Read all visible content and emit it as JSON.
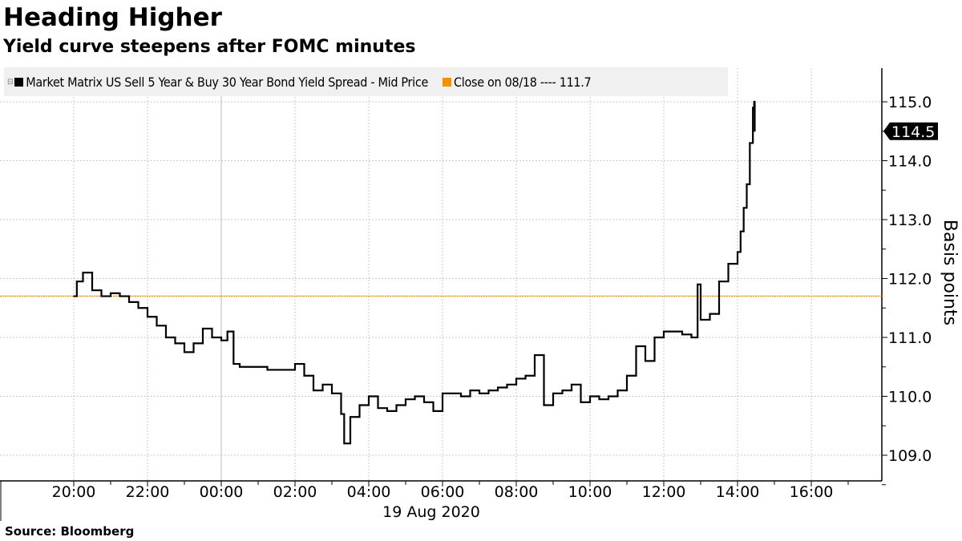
{
  "title": "Heading Higher",
  "subtitle": "Yield curve steepens after FOMC minutes",
  "source": "Source: Bloomberg",
  "colors": {
    "series": "#000000",
    "close_line": "#f39200",
    "legend_bg": "#f0f0f0",
    "grid": "#c8c8c8"
  },
  "chart_data": {
    "type": "line",
    "title": "Heading Higher",
    "subtitle": "Yield curve steepens after FOMC minutes",
    "ylabel": "Basis points",
    "xlabel": "19 Aug 2020",
    "ylim": [
      108.6,
      115.6
    ],
    "xlim": [
      "2020-08-18 19:00",
      "2020-08-19 17:40"
    ],
    "y_ticks": [
      "109.0",
      "110.0",
      "111.0",
      "112.0",
      "113.0",
      "114.0",
      "115.0"
    ],
    "x_ticks": [
      "20:00",
      "22:00",
      "00:00",
      "02:00",
      "04:00",
      "06:00",
      "08:00",
      "10:00",
      "12:00",
      "14:00",
      "16:00"
    ],
    "grid": true,
    "legend_placement": "top-left",
    "last_value_label": "114.5",
    "series": [
      {
        "name": "Market Matrix US Sell 5 Year & Buy 30 Year Bond Yield Spread - Mid Price",
        "color": "#000000",
        "points": [
          [
            "2020-08-18 20:00",
            111.7
          ],
          [
            "2020-08-18 20:05",
            111.95
          ],
          [
            "2020-08-18 20:15",
            112.1
          ],
          [
            "2020-08-18 20:30",
            111.8
          ],
          [
            "2020-08-18 20:45",
            111.7
          ],
          [
            "2020-08-18 21:00",
            111.75
          ],
          [
            "2020-08-18 21:15",
            111.7
          ],
          [
            "2020-08-18 21:30",
            111.6
          ],
          [
            "2020-08-18 21:45",
            111.5
          ],
          [
            "2020-08-18 22:00",
            111.35
          ],
          [
            "2020-08-18 22:15",
            111.2
          ],
          [
            "2020-08-18 22:30",
            111.0
          ],
          [
            "2020-08-18 22:45",
            110.9
          ],
          [
            "2020-08-18 23:00",
            110.75
          ],
          [
            "2020-08-18 23:15",
            110.9
          ],
          [
            "2020-08-18 23:30",
            111.15
          ],
          [
            "2020-08-18 23:45",
            111.0
          ],
          [
            "2020-08-19 00:00",
            110.95
          ],
          [
            "2020-08-19 00:10",
            111.1
          ],
          [
            "2020-08-19 00:20",
            110.55
          ],
          [
            "2020-08-19 00:30",
            110.5
          ],
          [
            "2020-08-19 00:45",
            110.5
          ],
          [
            "2020-08-19 01:00",
            110.5
          ],
          [
            "2020-08-19 01:15",
            110.45
          ],
          [
            "2020-08-19 01:30",
            110.45
          ],
          [
            "2020-08-19 01:45",
            110.45
          ],
          [
            "2020-08-19 02:00",
            110.55
          ],
          [
            "2020-08-19 02:15",
            110.35
          ],
          [
            "2020-08-19 02:30",
            110.1
          ],
          [
            "2020-08-19 02:45",
            110.2
          ],
          [
            "2020-08-19 03:00",
            110.05
          ],
          [
            "2020-08-19 03:15",
            109.7
          ],
          [
            "2020-08-19 03:20",
            109.2
          ],
          [
            "2020-08-19 03:30",
            109.65
          ],
          [
            "2020-08-19 03:45",
            109.85
          ],
          [
            "2020-08-19 04:00",
            110.0
          ],
          [
            "2020-08-19 04:15",
            109.8
          ],
          [
            "2020-08-19 04:30",
            109.75
          ],
          [
            "2020-08-19 04:45",
            109.85
          ],
          [
            "2020-08-19 05:00",
            109.95
          ],
          [
            "2020-08-19 05:15",
            110.0
          ],
          [
            "2020-08-19 05:30",
            109.9
          ],
          [
            "2020-08-19 05:45",
            109.75
          ],
          [
            "2020-08-19 06:00",
            110.05
          ],
          [
            "2020-08-19 06:15",
            110.05
          ],
          [
            "2020-08-19 06:30",
            110.0
          ],
          [
            "2020-08-19 06:45",
            110.1
          ],
          [
            "2020-08-19 07:00",
            110.05
          ],
          [
            "2020-08-19 07:15",
            110.1
          ],
          [
            "2020-08-19 07:30",
            110.15
          ],
          [
            "2020-08-19 07:45",
            110.2
          ],
          [
            "2020-08-19 08:00",
            110.3
          ],
          [
            "2020-08-19 08:15",
            110.35
          ],
          [
            "2020-08-19 08:30",
            110.7
          ],
          [
            "2020-08-19 08:45",
            109.85
          ],
          [
            "2020-08-19 09:00",
            110.05
          ],
          [
            "2020-08-19 09:15",
            110.1
          ],
          [
            "2020-08-19 09:30",
            110.2
          ],
          [
            "2020-08-19 09:45",
            109.9
          ],
          [
            "2020-08-19 10:00",
            110.0
          ],
          [
            "2020-08-19 10:15",
            109.95
          ],
          [
            "2020-08-19 10:30",
            110.0
          ],
          [
            "2020-08-19 10:45",
            110.1
          ],
          [
            "2020-08-19 11:00",
            110.35
          ],
          [
            "2020-08-19 11:15",
            110.85
          ],
          [
            "2020-08-19 11:30",
            110.6
          ],
          [
            "2020-08-19 11:45",
            111.0
          ],
          [
            "2020-08-19 12:00",
            111.1
          ],
          [
            "2020-08-19 12:15",
            111.1
          ],
          [
            "2020-08-19 12:30",
            111.05
          ],
          [
            "2020-08-19 12:45",
            111.0
          ],
          [
            "2020-08-19 12:55",
            111.9
          ],
          [
            "2020-08-19 13:00",
            111.3
          ],
          [
            "2020-08-19 13:15",
            111.4
          ],
          [
            "2020-08-19 13:30",
            111.95
          ],
          [
            "2020-08-19 13:45",
            112.25
          ],
          [
            "2020-08-19 14:00",
            112.45
          ],
          [
            "2020-08-19 14:05",
            112.8
          ],
          [
            "2020-08-19 14:10",
            113.2
          ],
          [
            "2020-08-19 14:15",
            113.6
          ],
          [
            "2020-08-19 14:20",
            114.3
          ],
          [
            "2020-08-19 14:25",
            114.9
          ],
          [
            "2020-08-19 14:27",
            115.0
          ],
          [
            "2020-08-19 14:28",
            114.5
          ]
        ]
      },
      {
        "name": "Close on 08/18 ---- 111.7",
        "color": "#f39200",
        "value": 111.7
      }
    ]
  }
}
